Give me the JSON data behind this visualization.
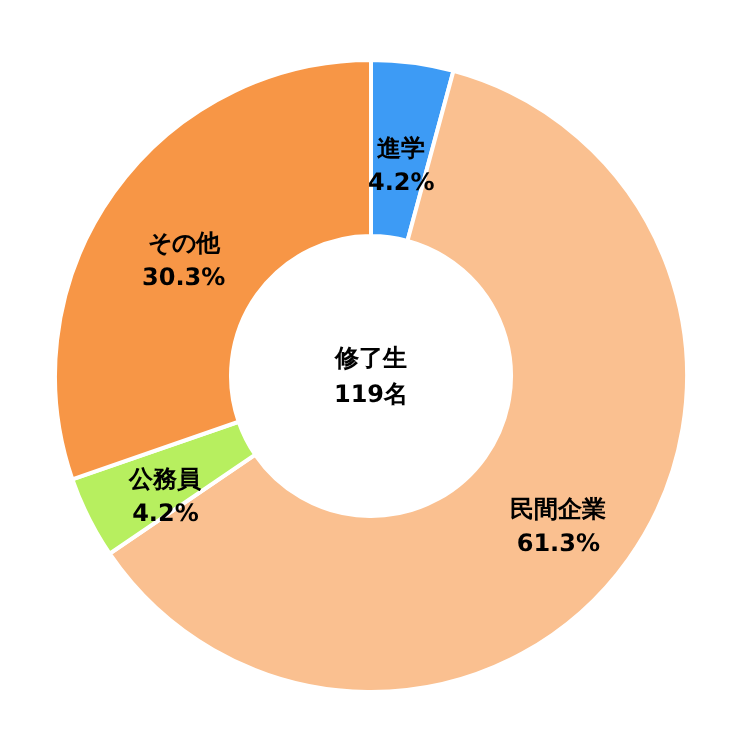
{
  "chart_data": {
    "type": "donut",
    "categories": [
      "進学",
      "民間企業",
      "公務員",
      "その他"
    ],
    "values": [
      4.2,
      61.3,
      4.2,
      30.3
    ],
    "value_labels": [
      "4.2%",
      "61.3%",
      "4.2%",
      "30.3%"
    ],
    "colors": [
      "#3d9bf5",
      "#fac090",
      "#b7ef5f",
      "#f79646"
    ],
    "annotations": [
      "修了生",
      "119名"
    ]
  }
}
